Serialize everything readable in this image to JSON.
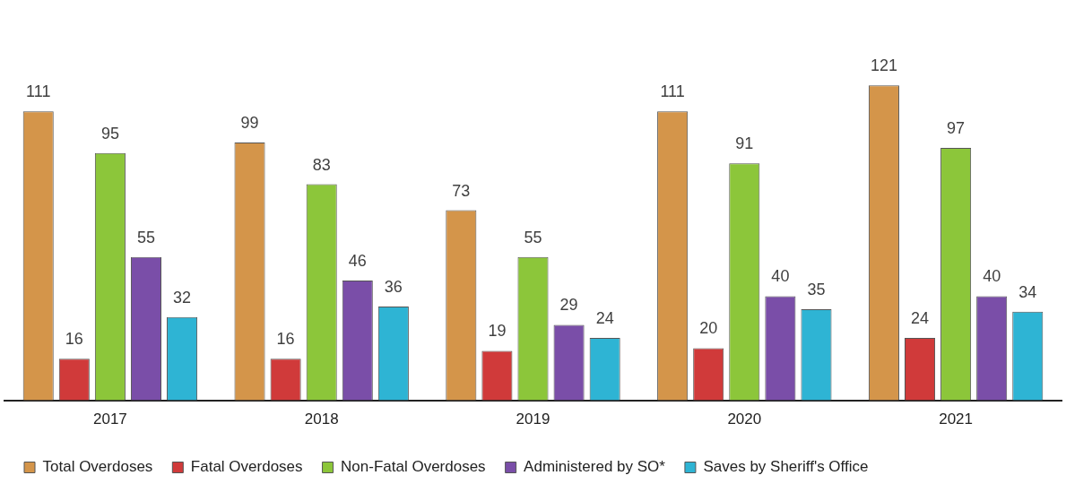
{
  "chart_data": {
    "type": "bar",
    "categories": [
      "2017",
      "2018",
      "2019",
      "2020",
      "2021"
    ],
    "series": [
      {
        "name": "Total Overdoses",
        "color": "#d4954a",
        "values": [
          111,
          99,
          73,
          111,
          121
        ]
      },
      {
        "name": "Fatal Overdoses",
        "color": "#d03a3a",
        "values": [
          16,
          16,
          19,
          20,
          24
        ]
      },
      {
        "name": "Non-Fatal Overdoses",
        "color": "#8cc63a",
        "values": [
          95,
          83,
          55,
          91,
          97
        ]
      },
      {
        "name": "Administered by SO*",
        "color": "#7a4ea8",
        "values": [
          55,
          46,
          29,
          40,
          40
        ]
      },
      {
        "name": "Saves by Sheriff's Office",
        "color": "#2eb4d4",
        "values": [
          32,
          36,
          24,
          35,
          34
        ]
      }
    ],
    "data_labels": true,
    "legend": "bottom",
    "grid": false
  }
}
